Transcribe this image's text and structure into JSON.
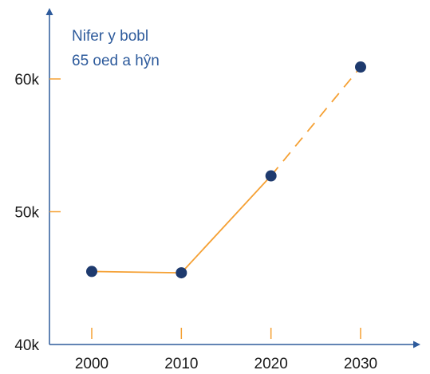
{
  "chart_data": {
    "type": "line",
    "title_lines": [
      "Nifer y bobl",
      "65 oed a hŷn"
    ],
    "xlabel": "",
    "ylabel": "",
    "x": [
      2000,
      2010,
      2020,
      2030
    ],
    "x_tick_labels": [
      "2000",
      "2010",
      "2020",
      "2030"
    ],
    "y_ticks": [
      40000,
      50000,
      60000
    ],
    "y_tick_labels": [
      "40k",
      "50k",
      "60k"
    ],
    "ylim": [
      40000,
      62500
    ],
    "xlim": [
      1995,
      2036
    ],
    "grid": false,
    "legend": "none",
    "series": [
      {
        "values": [
          45500,
          45400,
          52700,
          60900
        ],
        "line_style": [
          "solid",
          "solid",
          "dashed"
        ]
      }
    ],
    "colors": {
      "line": "#f5a033",
      "marker": "#1e3a6e",
      "axis": "#2e5b9c",
      "tick": "#f5a033",
      "title": "#2e5b9c"
    }
  }
}
